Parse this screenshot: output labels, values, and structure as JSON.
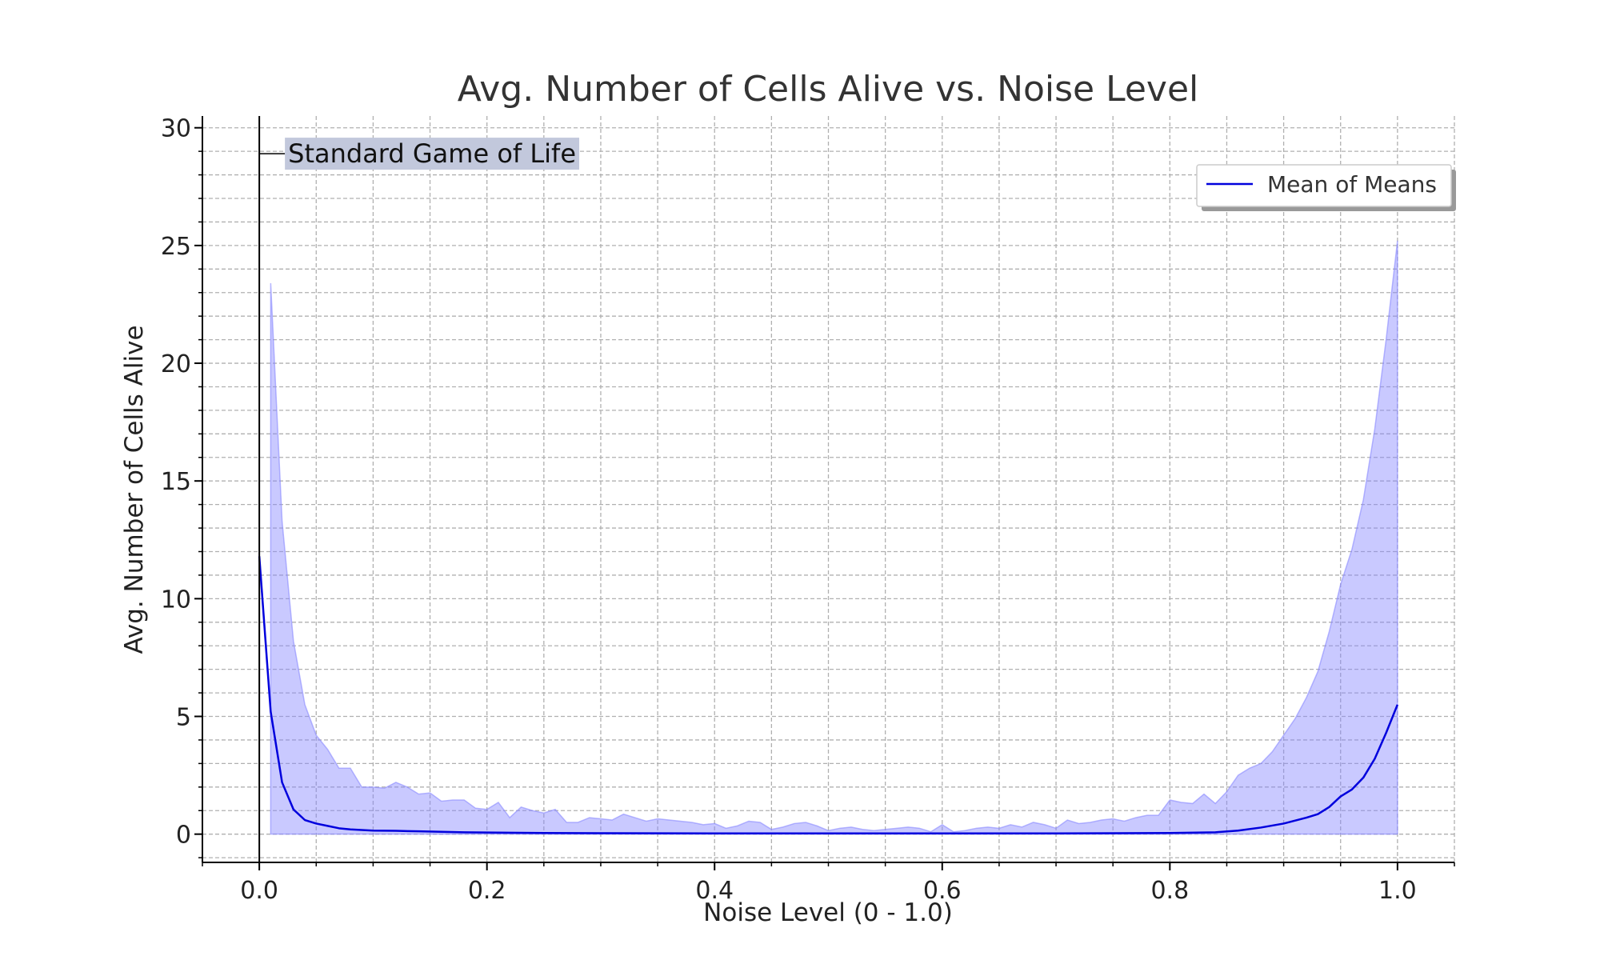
{
  "chart_data": {
    "type": "line",
    "title": "Avg. Number of Cells Alive vs. Noise Level",
    "xlabel": "Noise Level (0 - 1.0)",
    "ylabel": "Avg. Number of Cells Alive",
    "xlim": [
      -0.05,
      1.05
    ],
    "ylim": [
      -1.2,
      30.5
    ],
    "xticks": [
      0.0,
      0.2,
      0.4,
      0.6,
      0.8,
      1.0
    ],
    "xtick_labels": [
      "0.0",
      "0.2",
      "0.4",
      "0.6",
      "0.8",
      "1.0"
    ],
    "yticks": [
      0,
      5,
      10,
      15,
      20,
      25,
      30
    ],
    "ytick_labels": [
      "0",
      "5",
      "10",
      "15",
      "20",
      "25",
      "30"
    ],
    "grid": true,
    "legend_position": "top-right",
    "colors": {
      "line": "#0000dd",
      "band": "#8888ff",
      "annotation_box": "#c2c8dc"
    },
    "annotation": {
      "text": "Standard Game of Life",
      "x": 0.0,
      "y": 28.9
    },
    "series": [
      {
        "name": "Mean of Means",
        "x": [
          0.0,
          0.01,
          0.02,
          0.03,
          0.04,
          0.05,
          0.06,
          0.07,
          0.08,
          0.1,
          0.12,
          0.14,
          0.16,
          0.18,
          0.2,
          0.25,
          0.3,
          0.4,
          0.5,
          0.6,
          0.7,
          0.8,
          0.84,
          0.86,
          0.88,
          0.9,
          0.92,
          0.93,
          0.94,
          0.95,
          0.96,
          0.97,
          0.98,
          0.99,
          1.0
        ],
        "y": [
          11.8,
          5.2,
          2.2,
          1.05,
          0.6,
          0.45,
          0.35,
          0.25,
          0.2,
          0.15,
          0.14,
          0.12,
          0.1,
          0.08,
          0.07,
          0.05,
          0.04,
          0.03,
          0.03,
          0.03,
          0.03,
          0.05,
          0.08,
          0.15,
          0.28,
          0.45,
          0.7,
          0.85,
          1.15,
          1.6,
          1.9,
          2.4,
          3.2,
          4.3,
          5.5
        ]
      }
    ],
    "band": {
      "x": [
        0.01,
        0.02,
        0.03,
        0.04,
        0.05,
        0.06,
        0.07,
        0.08,
        0.09,
        0.1,
        0.11,
        0.12,
        0.13,
        0.14,
        0.15,
        0.16,
        0.17,
        0.18,
        0.19,
        0.2,
        0.21,
        0.22,
        0.23,
        0.24,
        0.25,
        0.26,
        0.27,
        0.28,
        0.29,
        0.3,
        0.31,
        0.32,
        0.33,
        0.34,
        0.35,
        0.36,
        0.37,
        0.38,
        0.39,
        0.4,
        0.41,
        0.42,
        0.43,
        0.44,
        0.45,
        0.46,
        0.47,
        0.48,
        0.49,
        0.5,
        0.51,
        0.52,
        0.53,
        0.54,
        0.55,
        0.56,
        0.57,
        0.58,
        0.59,
        0.6,
        0.61,
        0.62,
        0.63,
        0.64,
        0.65,
        0.66,
        0.67,
        0.68,
        0.69,
        0.7,
        0.71,
        0.72,
        0.73,
        0.74,
        0.75,
        0.76,
        0.77,
        0.78,
        0.79,
        0.8,
        0.81,
        0.82,
        0.83,
        0.84,
        0.85,
        0.86,
        0.87,
        0.88,
        0.89,
        0.9,
        0.91,
        0.92,
        0.93,
        0.94,
        0.95,
        0.96,
        0.97,
        0.98,
        0.99,
        1.0
      ],
      "upper": [
        23.4,
        13.3,
        8.2,
        5.5,
        4.2,
        3.6,
        2.8,
        2.8,
        2.0,
        2.0,
        1.95,
        2.2,
        2.0,
        1.7,
        1.75,
        1.4,
        1.45,
        1.45,
        1.1,
        1.05,
        1.35,
        0.7,
        1.15,
        1.0,
        0.9,
        1.05,
        0.5,
        0.5,
        0.7,
        0.65,
        0.6,
        0.85,
        0.7,
        0.55,
        0.65,
        0.6,
        0.55,
        0.5,
        0.4,
        0.45,
        0.25,
        0.35,
        0.55,
        0.5,
        0.2,
        0.3,
        0.45,
        0.5,
        0.35,
        0.15,
        0.25,
        0.3,
        0.2,
        0.15,
        0.2,
        0.25,
        0.3,
        0.25,
        0.1,
        0.4,
        0.1,
        0.15,
        0.25,
        0.3,
        0.25,
        0.4,
        0.3,
        0.5,
        0.4,
        0.25,
        0.6,
        0.45,
        0.5,
        0.6,
        0.65,
        0.55,
        0.7,
        0.8,
        0.8,
        1.45,
        1.35,
        1.3,
        1.7,
        1.3,
        1.8,
        2.5,
        2.8,
        3.0,
        3.5,
        4.2,
        4.9,
        5.8,
        6.9,
        8.6,
        10.6,
        12.1,
        14.2,
        17.2,
        21.0,
        25.2
      ]
    }
  }
}
